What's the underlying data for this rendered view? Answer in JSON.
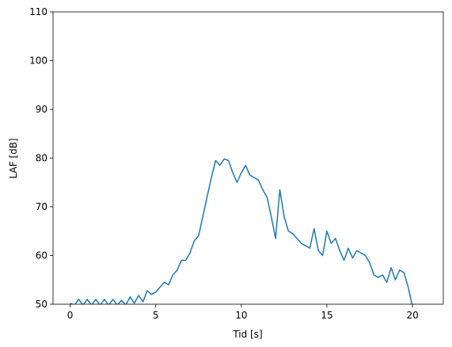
{
  "chart_data": {
    "type": "line",
    "x_label": "Tid [s]",
    "y_label": "LAF [dB]",
    "x": [
      0,
      0.25,
      0.5,
      0.75,
      1,
      1.25,
      1.5,
      1.75,
      2,
      2.25,
      2.5,
      2.75,
      3,
      3.25,
      3.5,
      3.75,
      4,
      4.25,
      4.5,
      4.75,
      5,
      5.25,
      5.5,
      5.75,
      6,
      6.25,
      6.5,
      6.75,
      7,
      7.25,
      7.5,
      7.75,
      8,
      8.25,
      8.5,
      8.75,
      9,
      9.25,
      9.5,
      9.75,
      10,
      10.25,
      10.5,
      10.75,
      11,
      11.25,
      11.5,
      11.75,
      12,
      12.25,
      12.5,
      12.75,
      13,
      13.25,
      13.5,
      13.75,
      14,
      14.25,
      14.5,
      14.75,
      15,
      15.25,
      15.5,
      15.75,
      16,
      16.25,
      16.5,
      16.75,
      17,
      17.25,
      17.5,
      17.75,
      18,
      18.25,
      18.5,
      18.75,
      19,
      19.25,
      19.5,
      19.75,
      20
    ],
    "series": [
      {
        "name": "LAF",
        "color": "#1f77b4",
        "values": [
          50.2,
          49.8,
          51,
          49.8,
          51,
          49.8,
          51,
          49.8,
          51,
          49.8,
          51,
          49.8,
          50.8,
          49.8,
          51.5,
          50.2,
          51.8,
          50.5,
          52.8,
          52,
          52.5,
          53.5,
          54.5,
          54,
          56,
          57,
          59,
          59,
          60.5,
          63,
          64,
          68,
          72,
          76,
          79.5,
          78.5,
          79.8,
          79.5,
          77,
          75,
          77,
          78.5,
          76.5,
          76,
          75.5,
          73.5,
          72,
          68,
          63.5,
          73.5,
          68,
          65,
          64.5,
          63.5,
          62.5,
          62,
          61.5,
          65.5,
          61,
          60,
          65,
          62.5,
          63.5,
          61,
          59,
          61.5,
          59.5,
          61,
          60.5,
          60,
          58.5,
          56,
          55.5,
          56,
          54.5,
          57.5,
          55,
          57,
          56.5,
          53.5,
          49.5
        ]
      }
    ],
    "xlim": [
      -1,
      21.8
    ],
    "ylim": [
      50,
      110
    ],
    "xticks": [
      0,
      5,
      10,
      15,
      20
    ],
    "yticks": [
      50,
      60,
      70,
      80,
      90,
      100,
      110
    ]
  }
}
